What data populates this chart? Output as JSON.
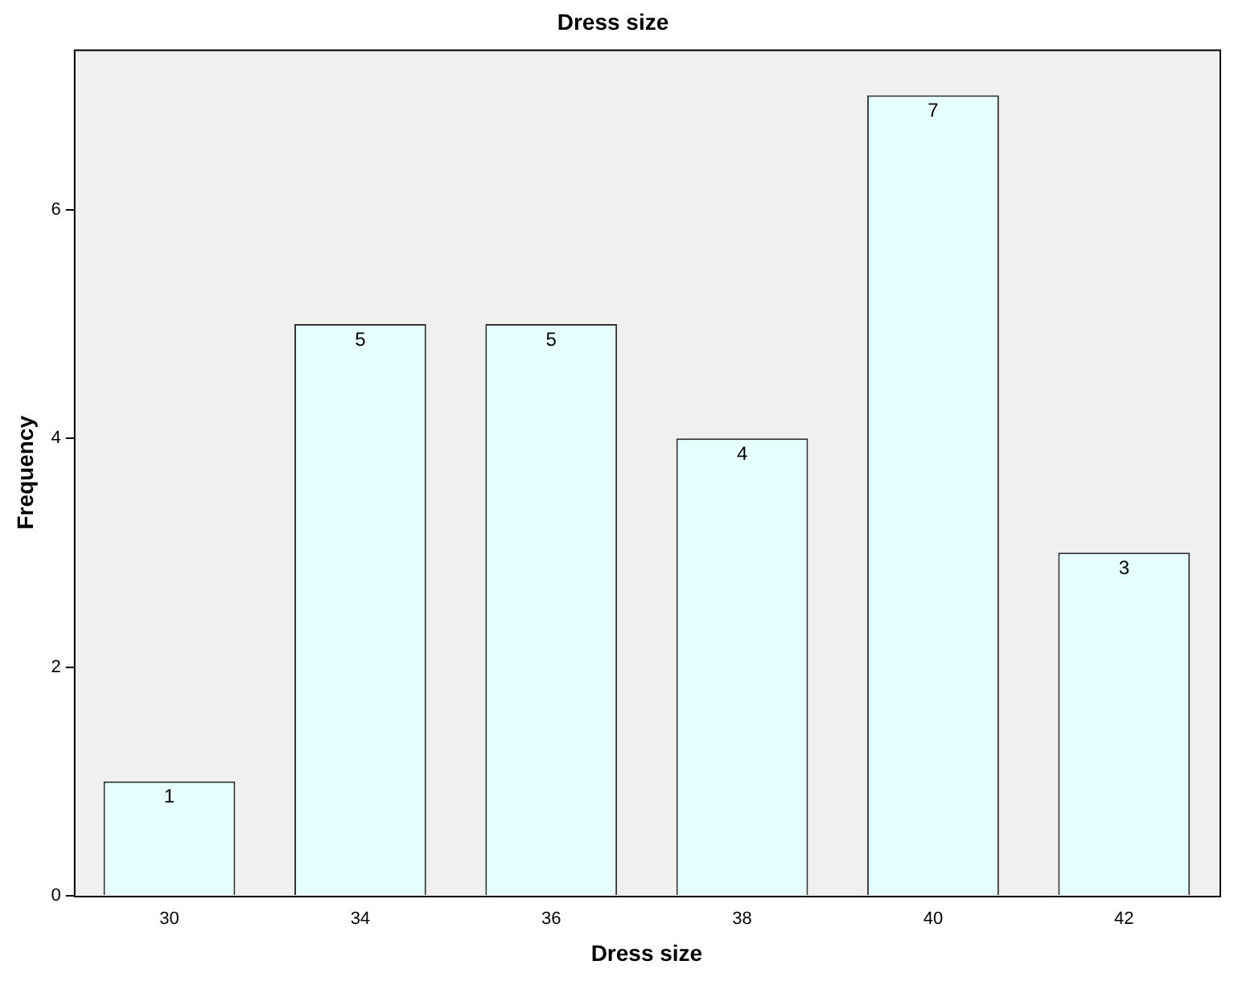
{
  "chart_data": {
    "type": "bar",
    "title": "Dress size",
    "xlabel": "Dress size",
    "ylabel": "Frequency",
    "categories": [
      "30",
      "34",
      "36",
      "38",
      "40",
      "42"
    ],
    "values": [
      1,
      5,
      5,
      4,
      7,
      3
    ],
    "color": "#e6ffff",
    "ylim": [
      0,
      7.4
    ],
    "yticks": [
      0,
      2,
      4,
      6
    ],
    "grid": false,
    "data_labels": true
  }
}
